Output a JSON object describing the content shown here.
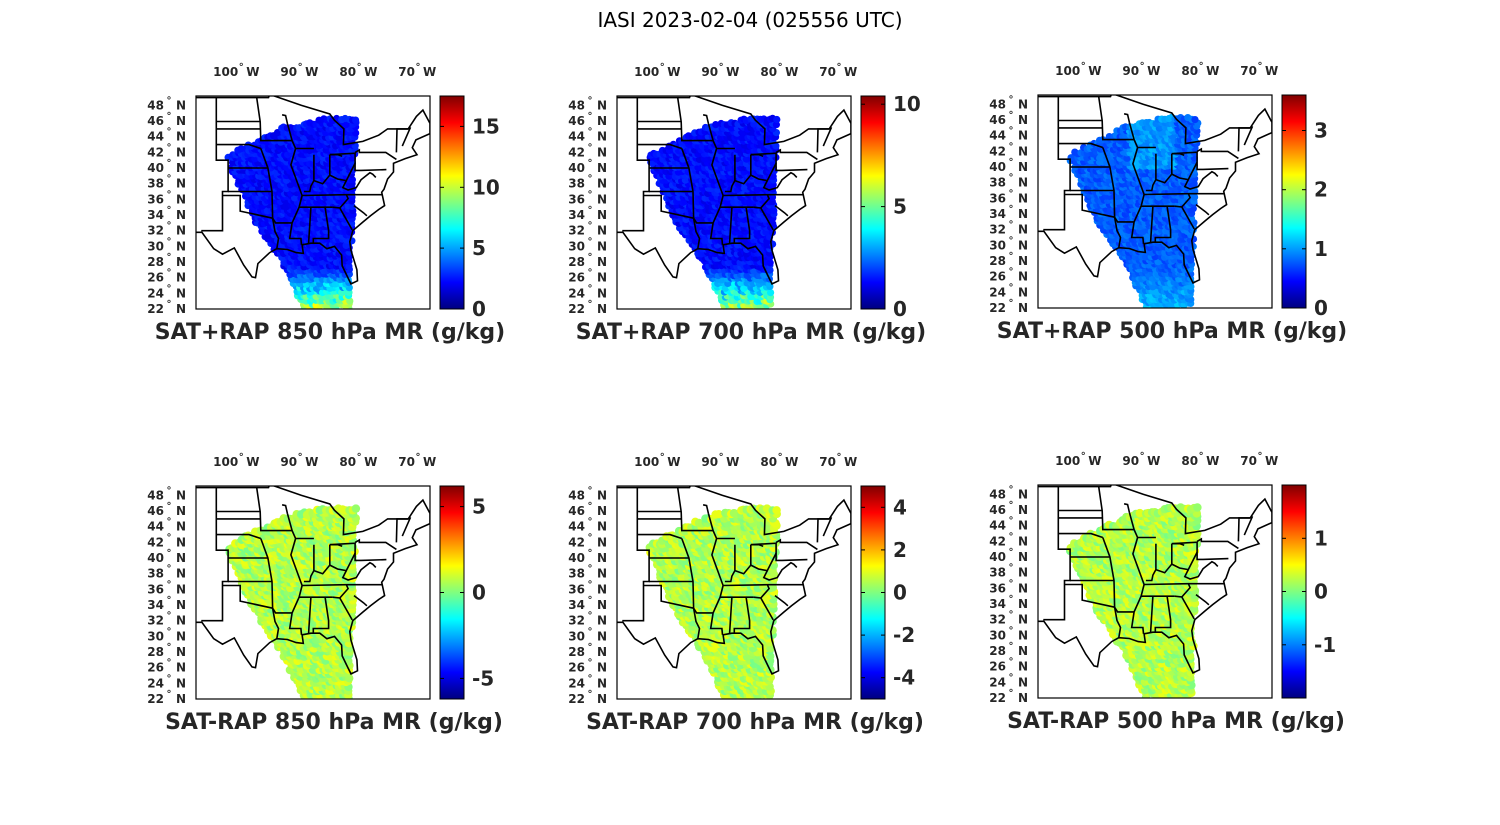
{
  "title": "IASI 2023-02-04 (025556 UTC)",
  "map": {
    "lon_ticks": [
      {
        "deg": "100",
        "hemi": "W",
        "value": -100
      },
      {
        "deg": "90",
        "hemi": "W",
        "value": -90
      },
      {
        "deg": "80",
        "hemi": "W",
        "value": -80
      },
      {
        "deg": "70",
        "hemi": "W",
        "value": -70
      }
    ],
    "lat_ticks": [
      {
        "deg": "48",
        "hemi": "N",
        "value": 48
      },
      {
        "deg": "46",
        "hemi": "N",
        "value": 46
      },
      {
        "deg": "44",
        "hemi": "N",
        "value": 44
      },
      {
        "deg": "42",
        "hemi": "N",
        "value": 42
      },
      {
        "deg": "40",
        "hemi": "N",
        "value": 40
      },
      {
        "deg": "38",
        "hemi": "N",
        "value": 38
      },
      {
        "deg": "36",
        "hemi": "N",
        "value": 36
      },
      {
        "deg": "34",
        "hemi": "N",
        "value": 34
      },
      {
        "deg": "32",
        "hemi": "N",
        "value": 32
      },
      {
        "deg": "30",
        "hemi": "N",
        "value": 30
      },
      {
        "deg": "28",
        "hemi": "N",
        "value": 28
      },
      {
        "deg": "26",
        "hemi": "N",
        "value": 26
      },
      {
        "deg": "24",
        "hemi": "N",
        "value": 24
      },
      {
        "deg": "22",
        "hemi": "N",
        "value": 22
      }
    ],
    "degree_symbol": "°",
    "colormap": "jet"
  },
  "panels": [
    {
      "caption": "SAT+RAP 850 hPa MR (g/kg)",
      "kind": "sum",
      "cmin": 0,
      "cmax": 17.5,
      "ticks": [
        "0",
        "5",
        "10",
        "15"
      ],
      "tick_values": [
        0,
        5,
        10,
        15
      ]
    },
    {
      "caption": "SAT+RAP 700 hPa MR (g/kg)",
      "kind": "sum",
      "cmin": 0,
      "cmax": 10.4,
      "ticks": [
        "0",
        "5",
        "10"
      ],
      "tick_values": [
        0,
        5,
        10
      ]
    },
    {
      "caption": "SAT+RAP 500 hPa MR (g/kg)",
      "kind": "sum",
      "cmin": 0,
      "cmax": 3.6,
      "ticks": [
        "0",
        "1",
        "2",
        "3"
      ],
      "tick_values": [
        0,
        1,
        2,
        3
      ]
    },
    {
      "caption": "SAT-RAP 850 hPa MR (g/kg)",
      "kind": "diff",
      "cmin": -6.2,
      "cmax": 6.2,
      "ticks": [
        "-5",
        "0",
        "5"
      ],
      "tick_values": [
        -5,
        0,
        5
      ]
    },
    {
      "caption": "SAT-RAP 700 hPa MR (g/kg)",
      "kind": "diff",
      "cmin": -5.0,
      "cmax": 5.0,
      "ticks": [
        "-4",
        "-2",
        "0",
        "2",
        "4"
      ],
      "tick_values": [
        -4,
        -2,
        0,
        2,
        4
      ]
    },
    {
      "caption": "SAT-RAP 500 hPa MR (g/kg)",
      "kind": "diff",
      "cmin": -2.0,
      "cmax": 2.0,
      "ticks": [
        "-1",
        "0",
        "1"
      ],
      "tick_values": [
        -1,
        0,
        1
      ]
    }
  ]
}
